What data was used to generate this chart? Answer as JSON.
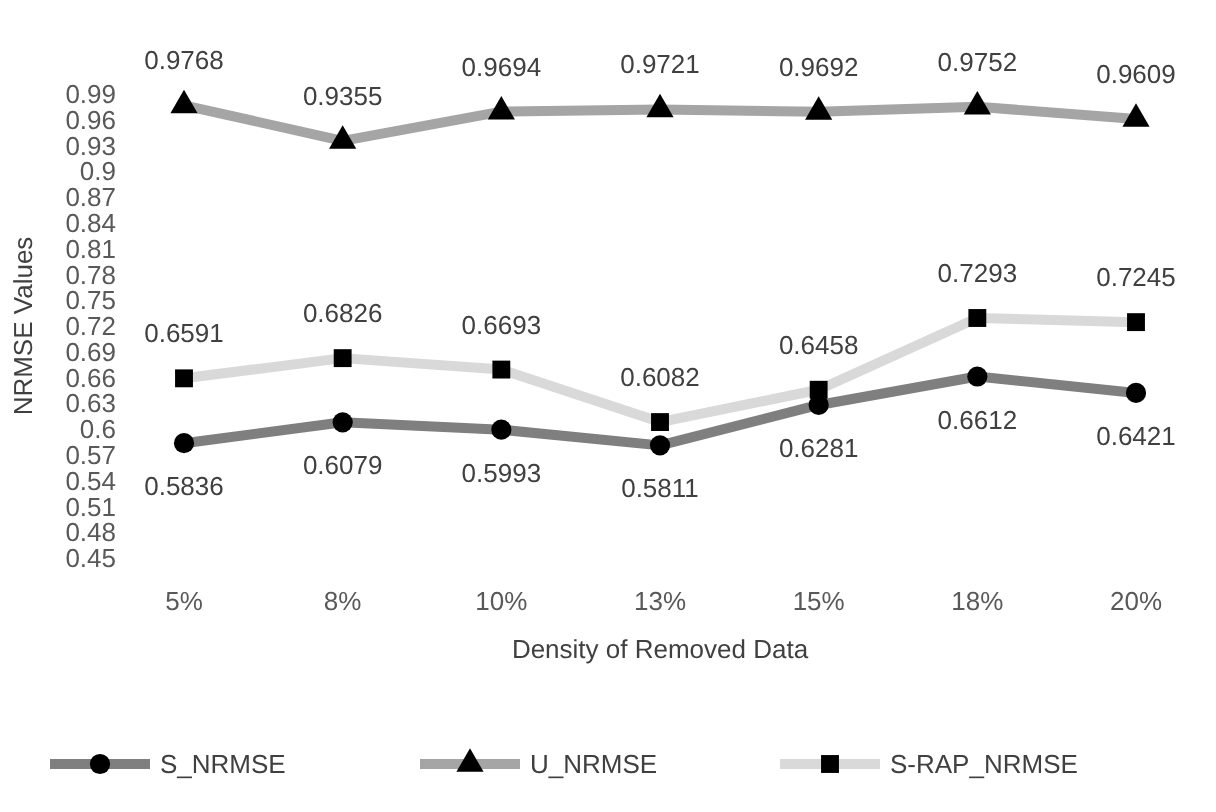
{
  "chart_data": {
    "type": "line",
    "xlabel": "Density of Removed Data",
    "ylabel": "NRMSE Values",
    "categories": [
      "5%",
      "8%",
      "10%",
      "13%",
      "15%",
      "18%",
      "20%"
    ],
    "ylim": [
      0.45,
      0.99
    ],
    "yticks": [
      0.45,
      0.48,
      0.51,
      0.54,
      0.57,
      0.6,
      0.63,
      0.66,
      0.69,
      0.72,
      0.75,
      0.78,
      0.81,
      0.84,
      0.87,
      0.9,
      0.93,
      0.96,
      0.99
    ],
    "grid": false,
    "legend": "bottom",
    "data_labels": true,
    "series": [
      {
        "name": "S_NRMSE",
        "color": "#7f7f7f",
        "marker": "circle",
        "values": [
          0.5836,
          0.6079,
          0.5993,
          0.5811,
          0.6281,
          0.6612,
          0.6421
        ]
      },
      {
        "name": "U_NRMSE",
        "color": "#a5a5a5",
        "marker": "triangle",
        "values": [
          0.9768,
          0.9355,
          0.9694,
          0.9721,
          0.9692,
          0.9752,
          0.9609
        ]
      },
      {
        "name": "S-RAP_NRMSE",
        "color": "#d9d9d9",
        "marker": "square",
        "values": [
          0.6591,
          0.6826,
          0.6693,
          0.6082,
          0.6458,
          0.7293,
          0.7245
        ]
      }
    ]
  }
}
